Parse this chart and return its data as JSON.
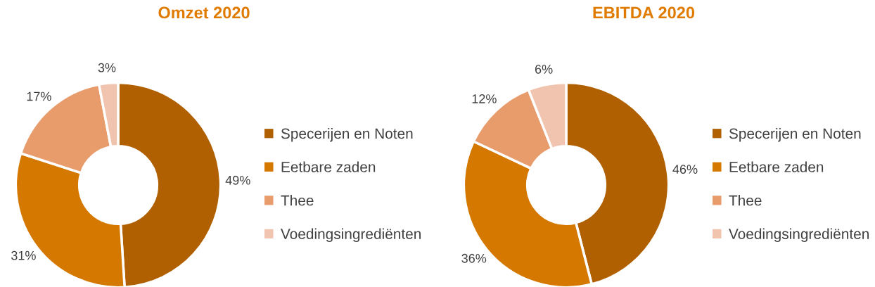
{
  "chart_data": [
    {
      "type": "donut",
      "title": "Omzet 2020",
      "categories": [
        "Specerijen en Noten",
        "Eetbare zaden",
        "Thee",
        "Voedingsingrediënten"
      ],
      "values": [
        49,
        31,
        17,
        3
      ],
      "value_labels": [
        "49%",
        "31%",
        "17%",
        "3%"
      ],
      "colors": [
        "#b06000",
        "#d47800",
        "#e89c6c",
        "#f1c4b0"
      ],
      "legend": "right"
    },
    {
      "type": "donut",
      "title": "EBITDA 2020",
      "categories": [
        "Specerijen en Noten",
        "Eetbare zaden",
        "Thee",
        "Voedingsingrediënten"
      ],
      "values": [
        46,
        36,
        12,
        6
      ],
      "value_labels": [
        "46%",
        "36%",
        "12%",
        "6%"
      ],
      "colors": [
        "#b06000",
        "#d47800",
        "#e89c6c",
        "#f1c4b0"
      ],
      "legend": "right"
    }
  ]
}
